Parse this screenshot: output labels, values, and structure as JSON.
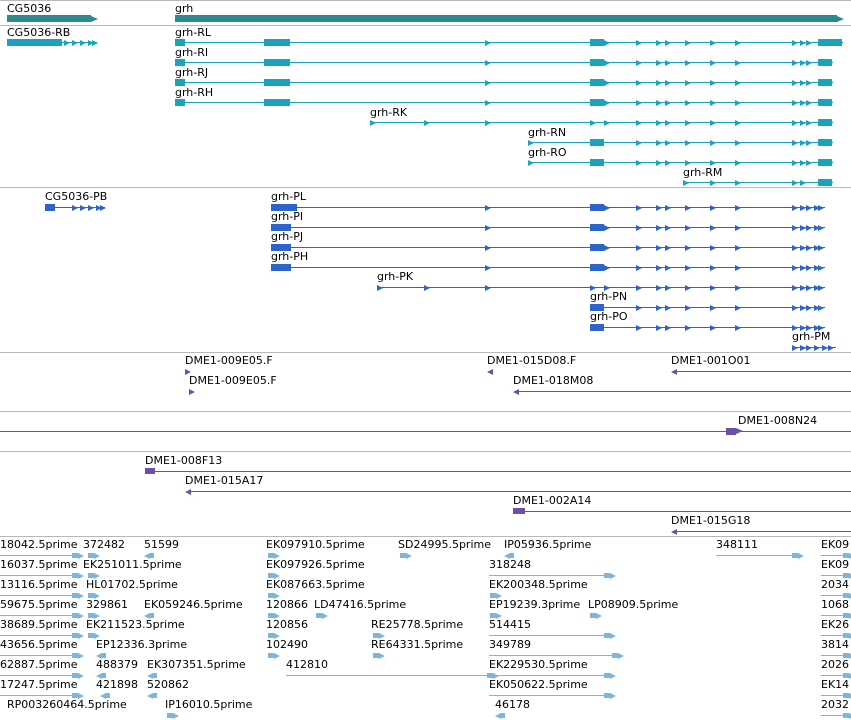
{
  "colors": {
    "gene": "#2b8a8e",
    "transcript_a": "#1ba3bd",
    "transcript_b": "#2d63cc",
    "clone": "#6b4fa8",
    "est": "#7fb4dc",
    "divider": "#b8b8b8"
  },
  "tracks": {
    "genes": {
      "labels": [
        "CG5036",
        "grh"
      ]
    },
    "transcripts_a": {
      "labels": [
        "CG5036-RB",
        "grh-RL",
        "grh-RI",
        "grh-RJ",
        "grh-RH",
        "grh-RK",
        "grh-RN",
        "grh-RO",
        "grh-RM"
      ]
    },
    "transcripts_b": {
      "labels": [
        "CG5036-PB",
        "grh-PL",
        "grh-PI",
        "grh-PJ",
        "grh-PH",
        "grh-PK",
        "grh-PN",
        "grh-PO",
        "grh-PM"
      ]
    },
    "clones_1": {
      "labels": [
        "DME1-009E05.F",
        "DME1-009E05.F",
        "DME1-015D08.F",
        "DME1-018M08",
        "DME1-001O01"
      ]
    },
    "clones_2": {
      "labels": [
        "DME1-008N24"
      ]
    },
    "clones_3": {
      "labels": [
        "DME1-008F13",
        "DME1-015A17",
        "DME1-002A14",
        "DME1-015G18"
      ]
    },
    "ests": {
      "labels": [
        "18042.5prime",
        "372482",
        "51599",
        "EK097910.5prime",
        "SD24995.5prime",
        "IP05936.5prime",
        "348111",
        "EK09",
        "16037.5prime",
        "EK251011.5prime",
        "EK097926.5prime",
        "318248",
        "EK09",
        "13116.5prime",
        "HL01702.5prime",
        "EK087663.5prime",
        "EK200348.5prime",
        "2034",
        "59675.5prime",
        "329861",
        "EK059246.5prime",
        "120866",
        "LD47416.5prime",
        "EP19239.3prime",
        "LP08909.5prime",
        "1068",
        "38689.5prime",
        "EK211523.5prime",
        "120856",
        "RE25778.5prime",
        "514415",
        "EK26",
        "43656.5prime",
        "EP12336.3prime",
        "102490",
        "RE64331.5prime",
        "349789",
        "3814",
        "62887.5prime",
        "488379",
        "EK307351.5prime",
        "412810",
        "EK229530.5prime",
        "2026",
        "17247.5prime",
        "421898",
        "520862",
        "EK050622.5prime",
        "EK14",
        "RP003260464.5prime",
        "IP16010.5prime",
        "46178",
        "2032"
      ]
    }
  }
}
